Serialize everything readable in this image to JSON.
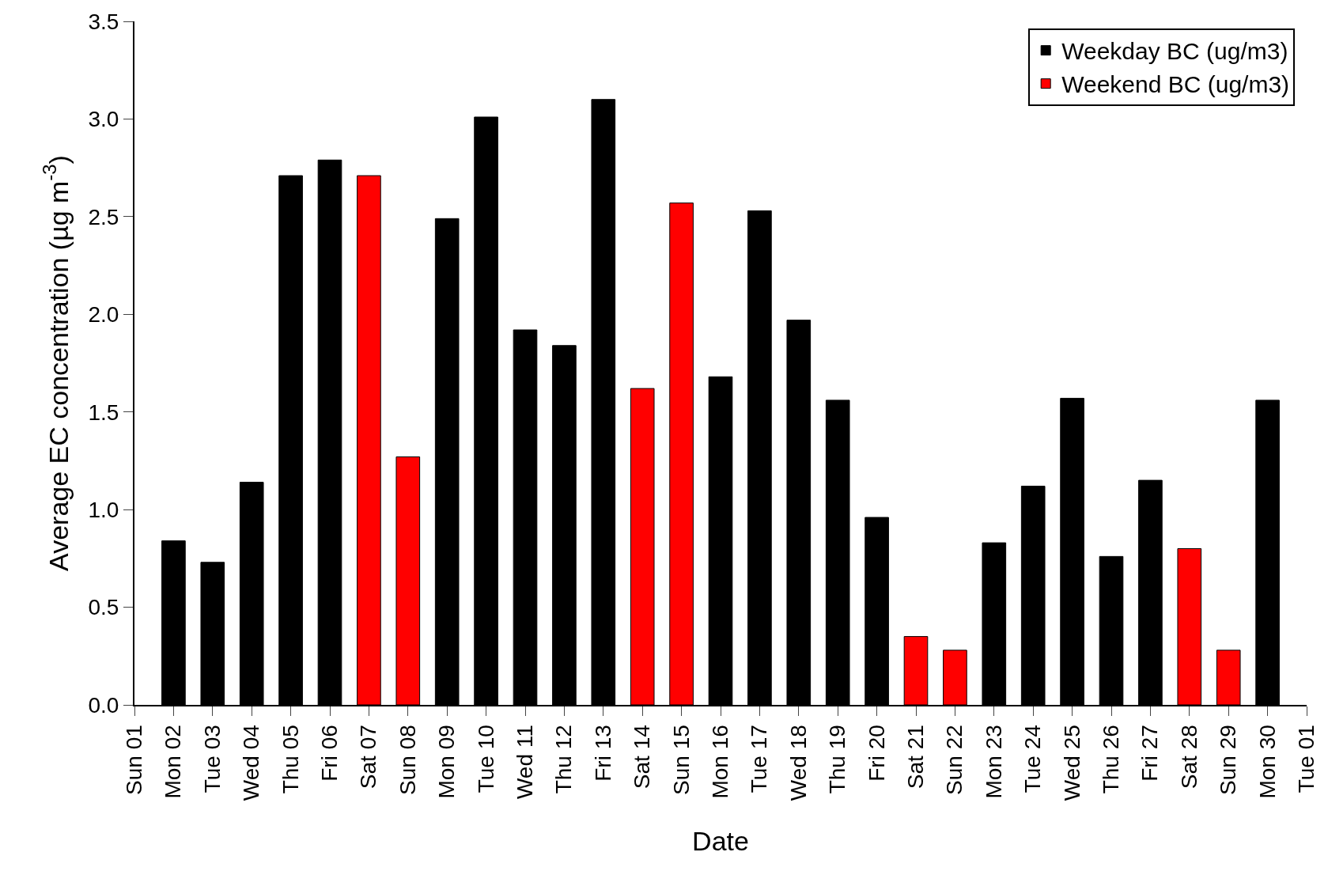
{
  "chart_data": {
    "type": "bar",
    "xlabel": "Date",
    "ylabel": "Average EC concentration (µg m$^{-3}$)",
    "categories": [
      "Sun 01",
      "Mon 02",
      "Tue 03",
      "Wed 04",
      "Thu 05",
      "Fri 06",
      "Sat 07",
      "Sun 08",
      "Mon 09",
      "Tue 10",
      "Wed 11",
      "Thu 12",
      "Fri 13",
      "Sat 14",
      "Sun 15",
      "Mon 16",
      "Tue 17",
      "Wed 18",
      "Thu 19",
      "Fri 20",
      "Sat 21",
      "Sun 22",
      "Mon 23",
      "Tue 24",
      "Wed 25",
      "Thu 26",
      "Fri 27",
      "Sat 28",
      "Sun 29",
      "Mon 30",
      "Tue 01"
    ],
    "series": [
      {
        "name": "Weekday BC (ug/m3)",
        "color": "#000000",
        "values": [
          null,
          0.84,
          0.73,
          1.14,
          2.71,
          2.79,
          null,
          null,
          2.49,
          3.01,
          1.92,
          1.84,
          3.1,
          null,
          null,
          1.68,
          2.53,
          1.97,
          1.56,
          0.96,
          null,
          null,
          0.83,
          1.12,
          1.57,
          0.76,
          1.15,
          null,
          null,
          1.56,
          null
        ]
      },
      {
        "name": "Weekend BC (ug/m3)",
        "color": "#ff0000",
        "values": [
          null,
          null,
          null,
          null,
          null,
          null,
          2.71,
          1.27,
          null,
          null,
          null,
          null,
          null,
          1.62,
          2.57,
          null,
          null,
          null,
          null,
          null,
          0.35,
          0.28,
          null,
          null,
          null,
          null,
          null,
          0.8,
          0.28,
          null,
          null
        ]
      }
    ],
    "ylim": [
      0,
      3.5
    ],
    "yticks": [
      {
        "value": 0,
        "label": "0.0"
      },
      0.5,
      {
        "value": 1,
        "label": "1.0"
      },
      1.5,
      {
        "value": 2,
        "label": "2.0"
      },
      2.5,
      {
        "value": 3,
        "label": "3.0"
      },
      3.5
    ],
    "legend": "top right"
  }
}
